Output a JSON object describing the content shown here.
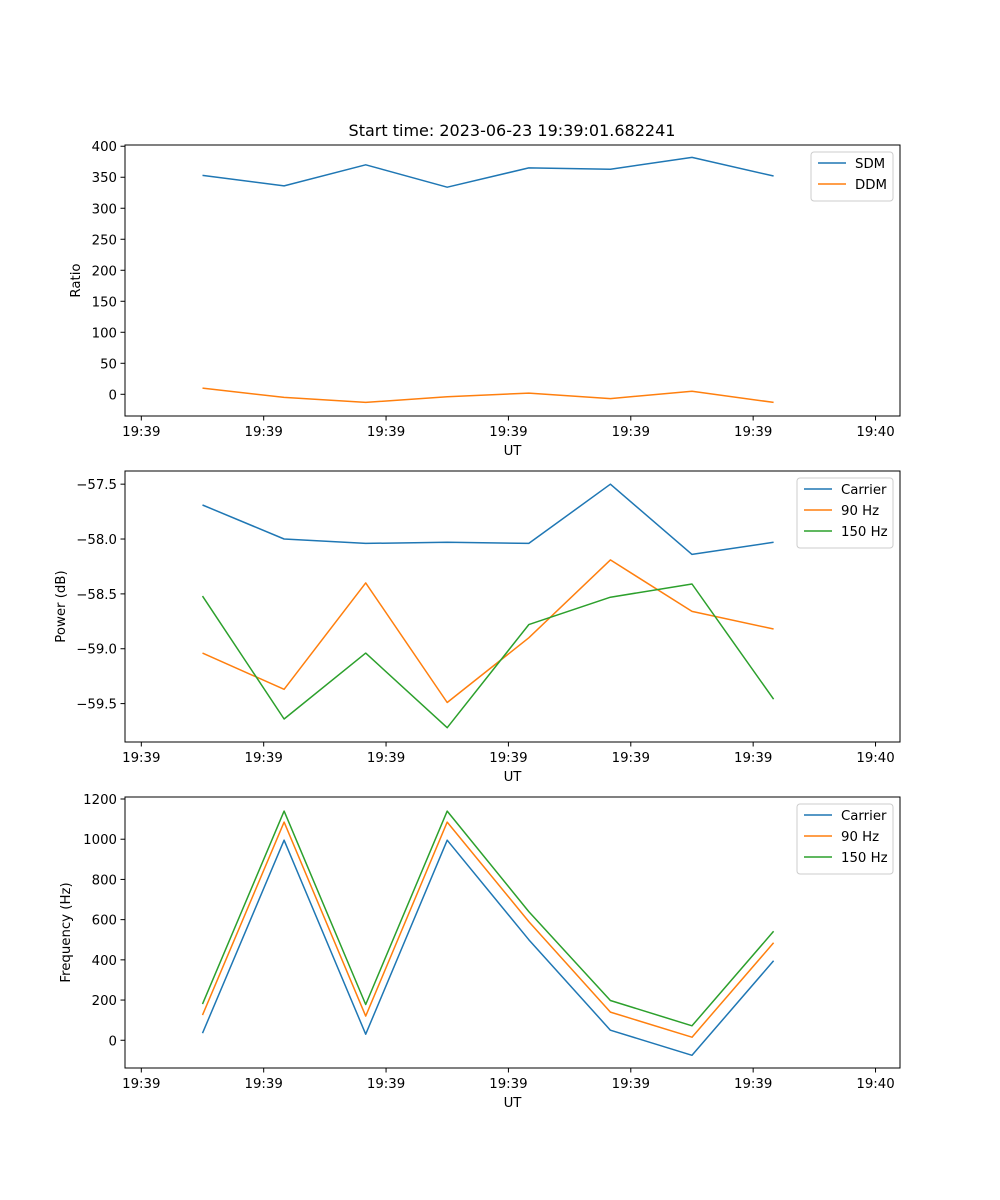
{
  "figure": {
    "title": "Start time: 2023-06-23 19:39:01.682241"
  },
  "chart_data": [
    {
      "type": "line",
      "title": "Start time: 2023-06-23 19:39:01.682241",
      "xlabel": "UT",
      "ylabel": "Ratio",
      "xlim": [
        0,
        9.5
      ],
      "ylim": [
        -35,
        402
      ],
      "x_ticks": [
        {
          "x": 0.2,
          "label": "19:39"
        },
        {
          "x": 1.7,
          "label": "19:39"
        },
        {
          "x": 3.2,
          "label": "19:39"
        },
        {
          "x": 4.7,
          "label": "19:39"
        },
        {
          "x": 6.2,
          "label": "19:39"
        },
        {
          "x": 7.7,
          "label": "19:39"
        },
        {
          "x": 9.2,
          "label": "19:40"
        }
      ],
      "y_ticks": [
        {
          "y": 400,
          "label": "400"
        },
        {
          "y": 350,
          "label": "350"
        },
        {
          "y": 300,
          "label": "300"
        },
        {
          "y": 250,
          "label": "250"
        },
        {
          "y": 200,
          "label": "200"
        },
        {
          "y": 150,
          "label": "150"
        },
        {
          "y": 100,
          "label": "100"
        },
        {
          "y": 50,
          "label": "50"
        },
        {
          "y": 0,
          "label": "0"
        }
      ],
      "legend_position": "top-right",
      "x": [
        0.95,
        1.95,
        2.95,
        3.95,
        4.95,
        5.95,
        6.95,
        7.95
      ],
      "series": [
        {
          "name": "SDM",
          "color": "#1f77b4",
          "values": [
            353,
            336,
            370,
            334,
            365,
            363,
            382,
            352
          ]
        },
        {
          "name": "DDM",
          "color": "#ff7f0e",
          "values": [
            10,
            -5,
            -13,
            -4,
            2,
            -7,
            5,
            -13
          ]
        }
      ]
    },
    {
      "type": "line",
      "title": "",
      "xlabel": "UT",
      "ylabel": "Power (dB)",
      "xlim": [
        0,
        9.5
      ],
      "ylim": [
        -59.85,
        -57.38
      ],
      "x_ticks": [
        {
          "x": 0.2,
          "label": "19:39"
        },
        {
          "x": 1.7,
          "label": "19:39"
        },
        {
          "x": 3.2,
          "label": "19:39"
        },
        {
          "x": 4.7,
          "label": "19:39"
        },
        {
          "x": 6.2,
          "label": "19:39"
        },
        {
          "x": 7.7,
          "label": "19:39"
        },
        {
          "x": 9.2,
          "label": "19:40"
        }
      ],
      "y_ticks": [
        {
          "y": -57.5,
          "label": "−57.5"
        },
        {
          "y": -58.0,
          "label": "−58.0"
        },
        {
          "y": -58.5,
          "label": "−58.5"
        },
        {
          "y": -59.0,
          "label": "−59.0"
        },
        {
          "y": -59.5,
          "label": "−59.5"
        }
      ],
      "legend_position": "top-right",
      "x": [
        0.95,
        1.95,
        2.95,
        3.95,
        4.95,
        5.95,
        6.95,
        7.95
      ],
      "series": [
        {
          "name": "Carrier",
          "color": "#1f77b4",
          "values": [
            -57.69,
            -58.0,
            -58.04,
            -58.03,
            -58.04,
            -57.5,
            -58.14,
            -58.03
          ]
        },
        {
          "name": "90 Hz",
          "color": "#ff7f0e",
          "values": [
            -59.04,
            -59.37,
            -58.4,
            -59.49,
            -58.9,
            -58.19,
            -58.66,
            -58.82
          ]
        },
        {
          "name": "150 Hz",
          "color": "#2ca02c",
          "values": [
            -58.52,
            -59.64,
            -59.04,
            -59.72,
            -58.78,
            -58.53,
            -58.41,
            -59.46
          ]
        }
      ]
    },
    {
      "type": "line",
      "title": "",
      "xlabel": "UT",
      "ylabel": "Frequency (Hz)",
      "xlim": [
        0,
        9.5
      ],
      "ylim": [
        -138,
        1210
      ],
      "x_ticks": [
        {
          "x": 0.2,
          "label": "19:39"
        },
        {
          "x": 1.7,
          "label": "19:39"
        },
        {
          "x": 3.2,
          "label": "19:39"
        },
        {
          "x": 4.7,
          "label": "19:39"
        },
        {
          "x": 6.2,
          "label": "19:39"
        },
        {
          "x": 7.7,
          "label": "19:39"
        },
        {
          "x": 9.2,
          "label": "19:40"
        }
      ],
      "y_ticks": [
        {
          "y": 1200,
          "label": "1200"
        },
        {
          "y": 1000,
          "label": "1000"
        },
        {
          "y": 800,
          "label": "800"
        },
        {
          "y": 600,
          "label": "600"
        },
        {
          "y": 400,
          "label": "400"
        },
        {
          "y": 200,
          "label": "200"
        },
        {
          "y": 0,
          "label": "0"
        }
      ],
      "legend_position": "top-right",
      "x": [
        0.95,
        1.95,
        2.95,
        3.95,
        4.95,
        5.95,
        6.95,
        7.95
      ],
      "series": [
        {
          "name": "Carrier",
          "color": "#1f77b4",
          "values": [
            35,
            995,
            30,
            995,
            500,
            50,
            -75,
            395
          ]
        },
        {
          "name": "90 Hz",
          "color": "#ff7f0e",
          "values": [
            125,
            1085,
            120,
            1085,
            590,
            140,
            15,
            485
          ]
        },
        {
          "name": "150 Hz",
          "color": "#2ca02c",
          "values": [
            180,
            1140,
            178,
            1140,
            640,
            198,
            72,
            542
          ]
        }
      ]
    }
  ]
}
